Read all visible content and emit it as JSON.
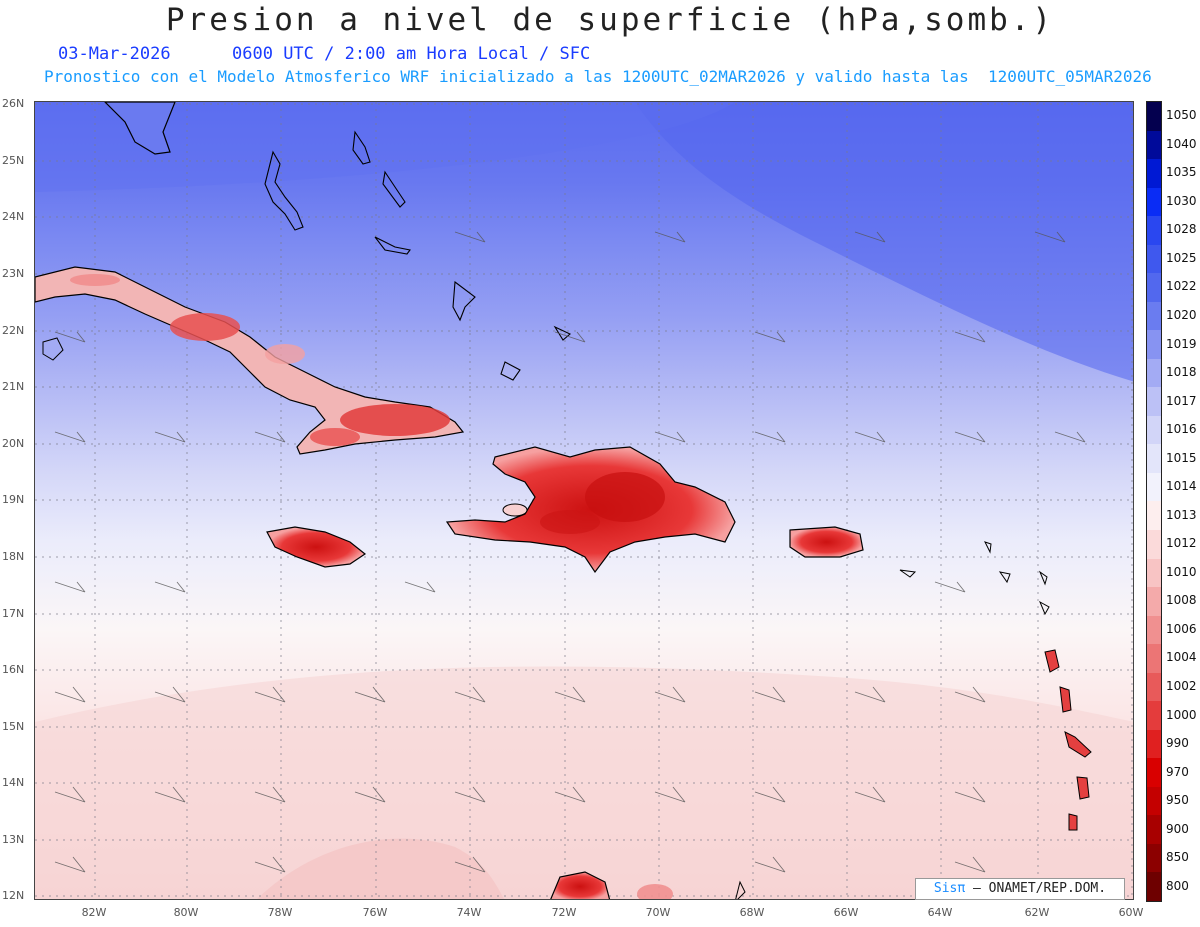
{
  "title": "Presion a nivel de superficie (hPa,somb.)",
  "date": "03-Mar-2026",
  "time_info": "0600 UTC / 2:00 am Hora Local / SFC",
  "model_info": "Pronostico con el Modelo Atmosferico WRF inicializado a las 1200UTC_02MAR2026 y valido hasta las  1200UTC_05MAR2026",
  "credit": {
    "brand": "Sisπ",
    "text": "– ONAMET/REP.DOM."
  },
  "lat_labels": [
    "26N",
    "25N",
    "24N",
    "23N",
    "22N",
    "21N",
    "20N",
    "19N",
    "18N",
    "17N",
    "16N",
    "15N",
    "14N",
    "13N",
    "12N"
  ],
  "lon_labels": [
    "82W",
    "80W",
    "78W",
    "76W",
    "74W",
    "72W",
    "70W",
    "68W",
    "66W",
    "64W",
    "62W",
    "60W"
  ],
  "colorbar": {
    "labels": [
      "1050",
      "1040",
      "1035",
      "1030",
      "1028",
      "1025",
      "1022",
      "1020",
      "1019",
      "1018",
      "1017",
      "1016",
      "1015",
      "1014",
      "1013",
      "1012",
      "1010",
      "1008",
      "1006",
      "1004",
      "1002",
      "1000",
      "990",
      "970",
      "950",
      "900",
      "850",
      "800"
    ],
    "colors": [
      "#04004f",
      "#000a9a",
      "#0019d4",
      "#0a2cf5",
      "#2a47f0",
      "#3f58ee",
      "#5268ee",
      "#6a7cf0",
      "#8793f2",
      "#a3abf4",
      "#bcc1f6",
      "#d2d5f8",
      "#e3e5fa",
      "#f2f2fc",
      "#fdeeee",
      "#fbdada",
      "#f8c4c4",
      "#f4aaaa",
      "#f09090",
      "#ec7575",
      "#e85a5a",
      "#e43c3c",
      "#e02020",
      "#d90000",
      "#c40000",
      "#a80000",
      "#8c0000",
      "#6e0000"
    ]
  }
}
